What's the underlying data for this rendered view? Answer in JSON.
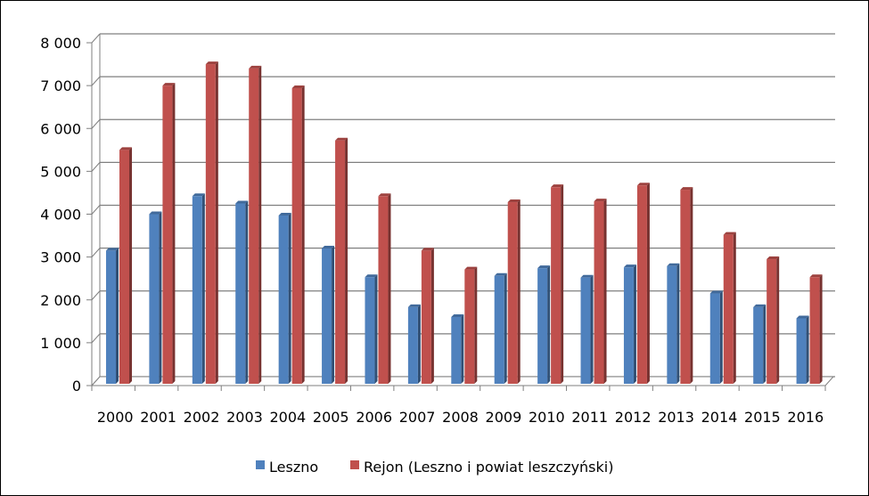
{
  "chart_data": {
    "type": "bar",
    "title": "",
    "xlabel": "",
    "ylabel": "",
    "ylim": [
      0,
      8000
    ],
    "y_ticks": [
      "0",
      "1 000",
      "2 000",
      "3 000",
      "4 000",
      "5 000",
      "6 000",
      "7 000",
      "8 000"
    ],
    "categories": [
      "2000",
      "2001",
      "2002",
      "2003",
      "2004",
      "2005",
      "2006",
      "2007",
      "2008",
      "2009",
      "2010",
      "2011",
      "2012",
      "2013",
      "2014",
      "2015",
      "2016"
    ],
    "series": [
      {
        "name": "Leszno",
        "color": "#4F81BD",
        "values": [
          3150,
          4000,
          4420,
          4250,
          3970,
          3200,
          2530,
          1830,
          1600,
          2560,
          2740,
          2520,
          2760,
          2790,
          2150,
          1830,
          1570
        ]
      },
      {
        "name": "Rejon (Leszno i powiat leszczyński)",
        "color": "#C0504D",
        "values": [
          5500,
          7000,
          7500,
          7400,
          6940,
          5720,
          4420,
          3150,
          2710,
          4280,
          4630,
          4300,
          4670,
          4570,
          3520,
          2950,
          2530
        ]
      }
    ],
    "grid": true,
    "legend_position": "bottom"
  }
}
